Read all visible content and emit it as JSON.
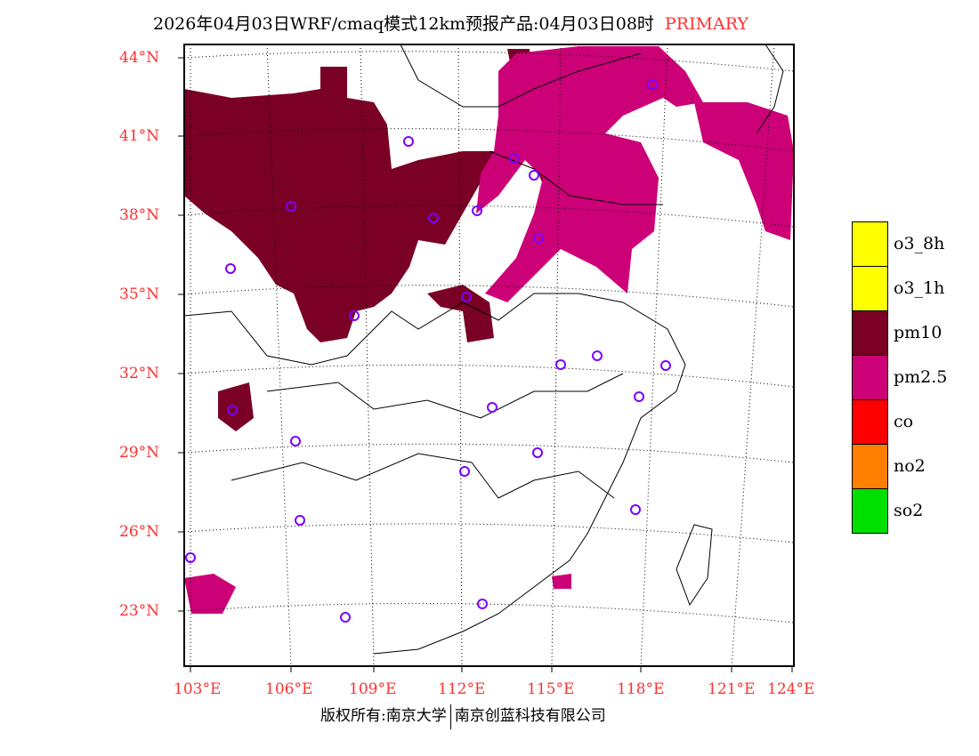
{
  "title": {
    "main": "2026年04月03日WRF/cmaq模式12km预报产品:04月03日08时",
    "tag": "PRIMARY"
  },
  "lat_labels": [
    "44°N",
    "41°N",
    "38°N",
    "35°N",
    "32°N",
    "29°N",
    "26°N",
    "23°N"
  ],
  "lon_labels": [
    "103°E",
    "106°E",
    "109°E",
    "112°E",
    "115°E",
    "118°E",
    "121°E",
    "124°E"
  ],
  "legend": [
    {
      "label": "o3_8h",
      "color": "#ffff00"
    },
    {
      "label": "o3_1h",
      "color": "#ffff00"
    },
    {
      "label": "pm10",
      "color": "#7a0026"
    },
    {
      "label": "pm2.5",
      "color": "#cc0077"
    },
    {
      "label": "co",
      "color": "#ff0000"
    },
    {
      "label": "no2",
      "color": "#ff8000"
    },
    {
      "label": "so2",
      "color": "#00e000"
    }
  ],
  "footer": {
    "left": "版权所有:南京大学",
    "right": "南京创蓝科技有限公司"
  }
}
